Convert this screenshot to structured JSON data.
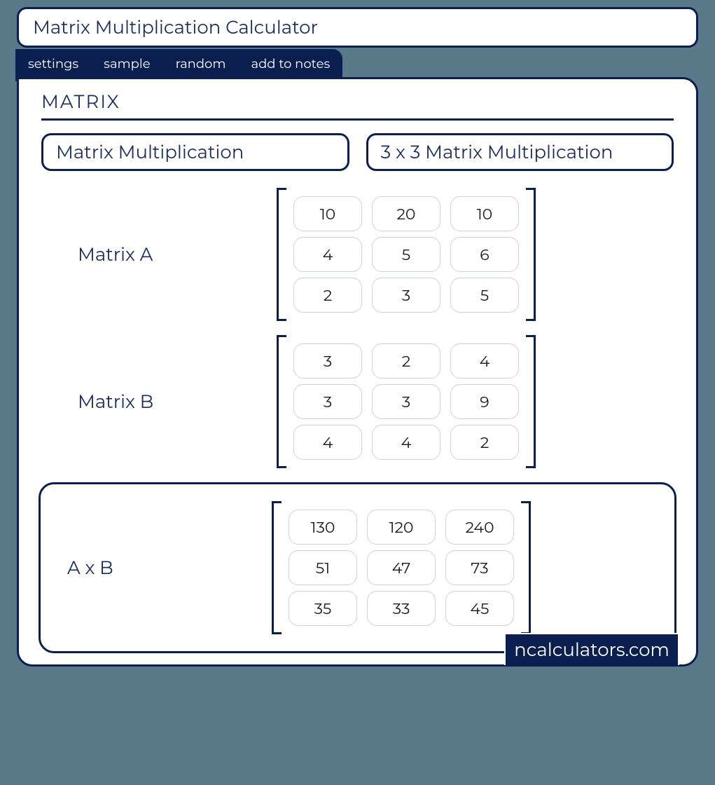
{
  "colors": {
    "primary": "#0a1e50",
    "text": "#1a2d5c",
    "cell_border": "#c9d2e3",
    "background": "#ffffff",
    "page_bg": "#5a7a8a"
  },
  "title": "Matrix Multiplication Calculator",
  "tabs": {
    "settings": "settings",
    "sample": "sample",
    "random": "random",
    "add_to_notes": "add to notes"
  },
  "section_label": "MATRIX",
  "chips": {
    "left": "Matrix Multiplication",
    "right": "3 x 3 Matrix Multiplication"
  },
  "matrixA": {
    "label": "Matrix A",
    "rows": [
      [
        "10",
        "20",
        "10"
      ],
      [
        "4",
        "5",
        "6"
      ],
      [
        "2",
        "3",
        "5"
      ]
    ]
  },
  "matrixB": {
    "label": "Matrix B",
    "rows": [
      [
        "3",
        "2",
        "4"
      ],
      [
        "3",
        "3",
        "9"
      ],
      [
        "4",
        "4",
        "2"
      ]
    ]
  },
  "result": {
    "label": "A x B",
    "rows": [
      [
        "130",
        "120",
        "240"
      ],
      [
        "51",
        "47",
        "73"
      ],
      [
        "35",
        "33",
        "45"
      ]
    ]
  },
  "footer": "ncalculators.com"
}
